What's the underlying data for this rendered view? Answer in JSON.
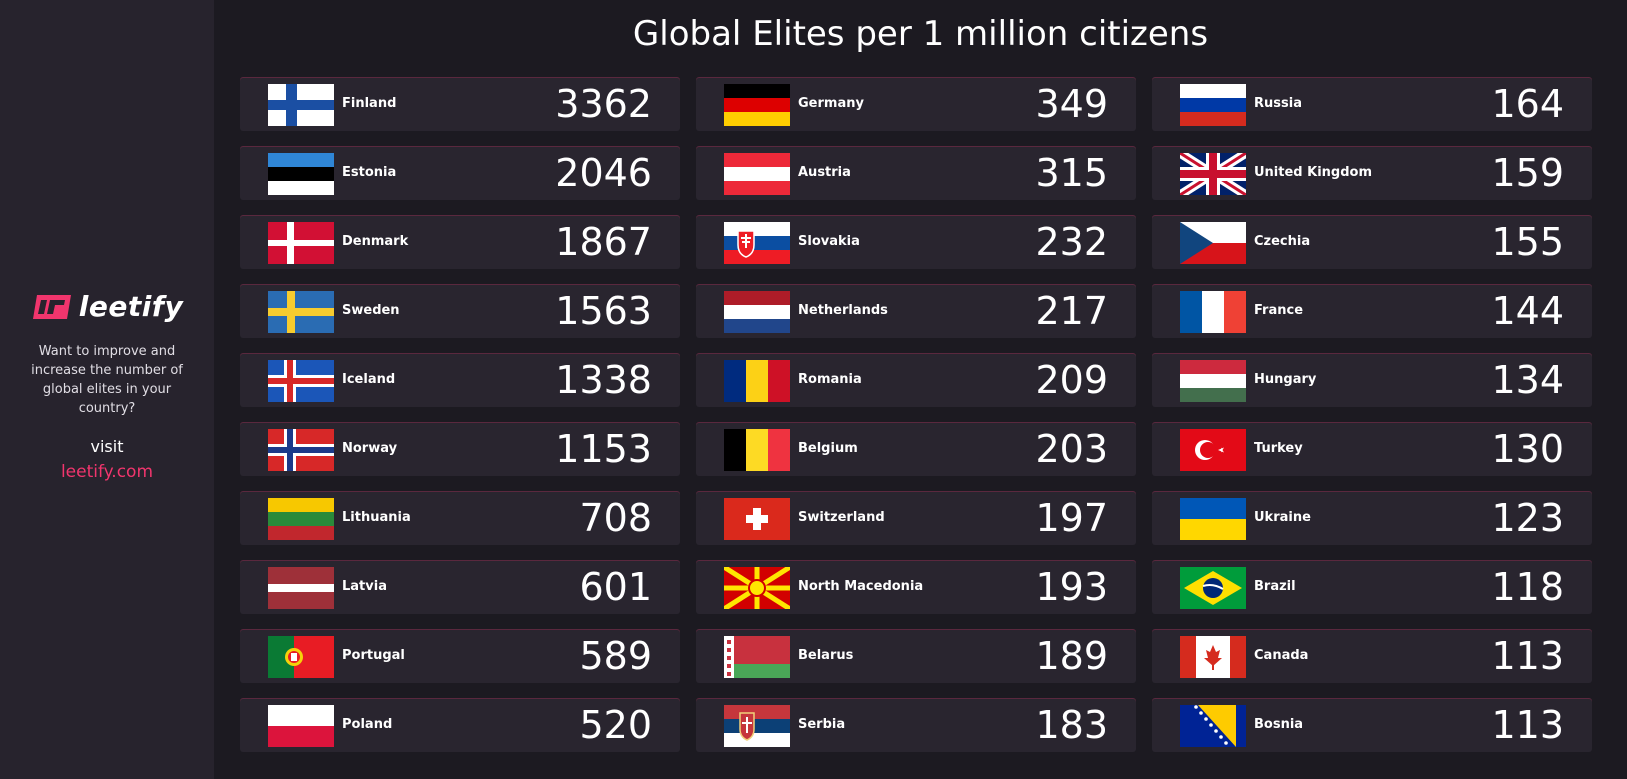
{
  "sidebar": {
    "logo_text": "leetify",
    "cta_text": "Want to improve and increase the number of global elites in your country?",
    "visit_label": "visit",
    "site_url": "leetify.com"
  },
  "colors": {
    "accent": "#f1356d",
    "background": "#1c1a21",
    "sidebar": "#27232d",
    "row": "#29252f"
  },
  "chart_data": {
    "type": "table",
    "title": "Global Elites per 1 million citizens",
    "rows": [
      {
        "country": "Finland",
        "flag": "finland-flag",
        "value": 3362
      },
      {
        "country": "Estonia",
        "flag": "estonia-flag",
        "value": 2046
      },
      {
        "country": "Denmark",
        "flag": "denmark-flag",
        "value": 1867
      },
      {
        "country": "Sweden",
        "flag": "sweden-flag",
        "value": 1563
      },
      {
        "country": "Iceland",
        "flag": "iceland-flag",
        "value": 1338
      },
      {
        "country": "Norway",
        "flag": "norway-flag",
        "value": 1153
      },
      {
        "country": "Lithuania",
        "flag": "lithuania-flag",
        "value": 708
      },
      {
        "country": "Latvia",
        "flag": "latvia-flag",
        "value": 601
      },
      {
        "country": "Portugal",
        "flag": "portugal-flag",
        "value": 589
      },
      {
        "country": "Poland",
        "flag": "poland-flag",
        "value": 520
      },
      {
        "country": "Germany",
        "flag": "germany-flag",
        "value": 349
      },
      {
        "country": "Austria",
        "flag": "austria-flag",
        "value": 315
      },
      {
        "country": "Slovakia",
        "flag": "slovakia-flag",
        "value": 232
      },
      {
        "country": "Netherlands",
        "flag": "netherlands-flag",
        "value": 217
      },
      {
        "country": "Romania",
        "flag": "romania-flag",
        "value": 209
      },
      {
        "country": "Belgium",
        "flag": "belgium-flag",
        "value": 203
      },
      {
        "country": "Switzerland",
        "flag": "switzerland-flag",
        "value": 197
      },
      {
        "country": "North Macedonia",
        "flag": "north-macedonia-flag",
        "value": 193
      },
      {
        "country": "Belarus",
        "flag": "belarus-flag",
        "value": 189
      },
      {
        "country": "Serbia",
        "flag": "serbia-flag",
        "value": 183
      },
      {
        "country": "Russia",
        "flag": "russia-flag",
        "value": 164
      },
      {
        "country": "United Kingdom",
        "flag": "united-kingdom-flag",
        "value": 159
      },
      {
        "country": "Czechia",
        "flag": "czechia-flag",
        "value": 155
      },
      {
        "country": "France",
        "flag": "france-flag",
        "value": 144
      },
      {
        "country": "Hungary",
        "flag": "hungary-flag",
        "value": 134
      },
      {
        "country": "Turkey",
        "flag": "turkey-flag",
        "value": 130
      },
      {
        "country": "Ukraine",
        "flag": "ukraine-flag",
        "value": 123
      },
      {
        "country": "Brazil",
        "flag": "brazil-flag",
        "value": 118
      },
      {
        "country": "Canada",
        "flag": "canada-flag",
        "value": 113
      },
      {
        "country": "Bosnia",
        "flag": "bosnia-flag",
        "value": 113
      }
    ]
  }
}
